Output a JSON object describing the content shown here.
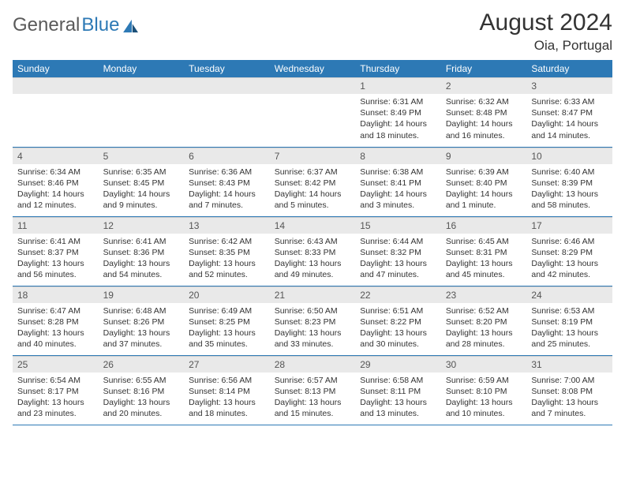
{
  "brand": {
    "part1": "General",
    "part2": "Blue"
  },
  "title": "August 2024",
  "location": "Oia, Portugal",
  "colors": {
    "header_bg": "#2d79b5",
    "header_text": "#ffffff",
    "daynum_bg": "#e9e9e9",
    "row_border": "#2d79b5",
    "text": "#333333",
    "page_bg": "#ffffff"
  },
  "typography": {
    "title_fontsize": 30,
    "location_fontsize": 17,
    "header_fontsize": 12,
    "body_fontsize": 10.5
  },
  "weekdays": [
    "Sunday",
    "Monday",
    "Tuesday",
    "Wednesday",
    "Thursday",
    "Friday",
    "Saturday"
  ],
  "weeks": [
    [
      null,
      null,
      null,
      null,
      {
        "n": "1",
        "sunrise": "Sunrise: 6:31 AM",
        "sunset": "Sunset: 8:49 PM",
        "daylight": "Daylight: 14 hours and 18 minutes."
      },
      {
        "n": "2",
        "sunrise": "Sunrise: 6:32 AM",
        "sunset": "Sunset: 8:48 PM",
        "daylight": "Daylight: 14 hours and 16 minutes."
      },
      {
        "n": "3",
        "sunrise": "Sunrise: 6:33 AM",
        "sunset": "Sunset: 8:47 PM",
        "daylight": "Daylight: 14 hours and 14 minutes."
      }
    ],
    [
      {
        "n": "4",
        "sunrise": "Sunrise: 6:34 AM",
        "sunset": "Sunset: 8:46 PM",
        "daylight": "Daylight: 14 hours and 12 minutes."
      },
      {
        "n": "5",
        "sunrise": "Sunrise: 6:35 AM",
        "sunset": "Sunset: 8:45 PM",
        "daylight": "Daylight: 14 hours and 9 minutes."
      },
      {
        "n": "6",
        "sunrise": "Sunrise: 6:36 AM",
        "sunset": "Sunset: 8:43 PM",
        "daylight": "Daylight: 14 hours and 7 minutes."
      },
      {
        "n": "7",
        "sunrise": "Sunrise: 6:37 AM",
        "sunset": "Sunset: 8:42 PM",
        "daylight": "Daylight: 14 hours and 5 minutes."
      },
      {
        "n": "8",
        "sunrise": "Sunrise: 6:38 AM",
        "sunset": "Sunset: 8:41 PM",
        "daylight": "Daylight: 14 hours and 3 minutes."
      },
      {
        "n": "9",
        "sunrise": "Sunrise: 6:39 AM",
        "sunset": "Sunset: 8:40 PM",
        "daylight": "Daylight: 14 hours and 1 minute."
      },
      {
        "n": "10",
        "sunrise": "Sunrise: 6:40 AM",
        "sunset": "Sunset: 8:39 PM",
        "daylight": "Daylight: 13 hours and 58 minutes."
      }
    ],
    [
      {
        "n": "11",
        "sunrise": "Sunrise: 6:41 AM",
        "sunset": "Sunset: 8:37 PM",
        "daylight": "Daylight: 13 hours and 56 minutes."
      },
      {
        "n": "12",
        "sunrise": "Sunrise: 6:41 AM",
        "sunset": "Sunset: 8:36 PM",
        "daylight": "Daylight: 13 hours and 54 minutes."
      },
      {
        "n": "13",
        "sunrise": "Sunrise: 6:42 AM",
        "sunset": "Sunset: 8:35 PM",
        "daylight": "Daylight: 13 hours and 52 minutes."
      },
      {
        "n": "14",
        "sunrise": "Sunrise: 6:43 AM",
        "sunset": "Sunset: 8:33 PM",
        "daylight": "Daylight: 13 hours and 49 minutes."
      },
      {
        "n": "15",
        "sunrise": "Sunrise: 6:44 AM",
        "sunset": "Sunset: 8:32 PM",
        "daylight": "Daylight: 13 hours and 47 minutes."
      },
      {
        "n": "16",
        "sunrise": "Sunrise: 6:45 AM",
        "sunset": "Sunset: 8:31 PM",
        "daylight": "Daylight: 13 hours and 45 minutes."
      },
      {
        "n": "17",
        "sunrise": "Sunrise: 6:46 AM",
        "sunset": "Sunset: 8:29 PM",
        "daylight": "Daylight: 13 hours and 42 minutes."
      }
    ],
    [
      {
        "n": "18",
        "sunrise": "Sunrise: 6:47 AM",
        "sunset": "Sunset: 8:28 PM",
        "daylight": "Daylight: 13 hours and 40 minutes."
      },
      {
        "n": "19",
        "sunrise": "Sunrise: 6:48 AM",
        "sunset": "Sunset: 8:26 PM",
        "daylight": "Daylight: 13 hours and 37 minutes."
      },
      {
        "n": "20",
        "sunrise": "Sunrise: 6:49 AM",
        "sunset": "Sunset: 8:25 PM",
        "daylight": "Daylight: 13 hours and 35 minutes."
      },
      {
        "n": "21",
        "sunrise": "Sunrise: 6:50 AM",
        "sunset": "Sunset: 8:23 PM",
        "daylight": "Daylight: 13 hours and 33 minutes."
      },
      {
        "n": "22",
        "sunrise": "Sunrise: 6:51 AM",
        "sunset": "Sunset: 8:22 PM",
        "daylight": "Daylight: 13 hours and 30 minutes."
      },
      {
        "n": "23",
        "sunrise": "Sunrise: 6:52 AM",
        "sunset": "Sunset: 8:20 PM",
        "daylight": "Daylight: 13 hours and 28 minutes."
      },
      {
        "n": "24",
        "sunrise": "Sunrise: 6:53 AM",
        "sunset": "Sunset: 8:19 PM",
        "daylight": "Daylight: 13 hours and 25 minutes."
      }
    ],
    [
      {
        "n": "25",
        "sunrise": "Sunrise: 6:54 AM",
        "sunset": "Sunset: 8:17 PM",
        "daylight": "Daylight: 13 hours and 23 minutes."
      },
      {
        "n": "26",
        "sunrise": "Sunrise: 6:55 AM",
        "sunset": "Sunset: 8:16 PM",
        "daylight": "Daylight: 13 hours and 20 minutes."
      },
      {
        "n": "27",
        "sunrise": "Sunrise: 6:56 AM",
        "sunset": "Sunset: 8:14 PM",
        "daylight": "Daylight: 13 hours and 18 minutes."
      },
      {
        "n": "28",
        "sunrise": "Sunrise: 6:57 AM",
        "sunset": "Sunset: 8:13 PM",
        "daylight": "Daylight: 13 hours and 15 minutes."
      },
      {
        "n": "29",
        "sunrise": "Sunrise: 6:58 AM",
        "sunset": "Sunset: 8:11 PM",
        "daylight": "Daylight: 13 hours and 13 minutes."
      },
      {
        "n": "30",
        "sunrise": "Sunrise: 6:59 AM",
        "sunset": "Sunset: 8:10 PM",
        "daylight": "Daylight: 13 hours and 10 minutes."
      },
      {
        "n": "31",
        "sunrise": "Sunrise: 7:00 AM",
        "sunset": "Sunset: 8:08 PM",
        "daylight": "Daylight: 13 hours and 7 minutes."
      }
    ]
  ]
}
